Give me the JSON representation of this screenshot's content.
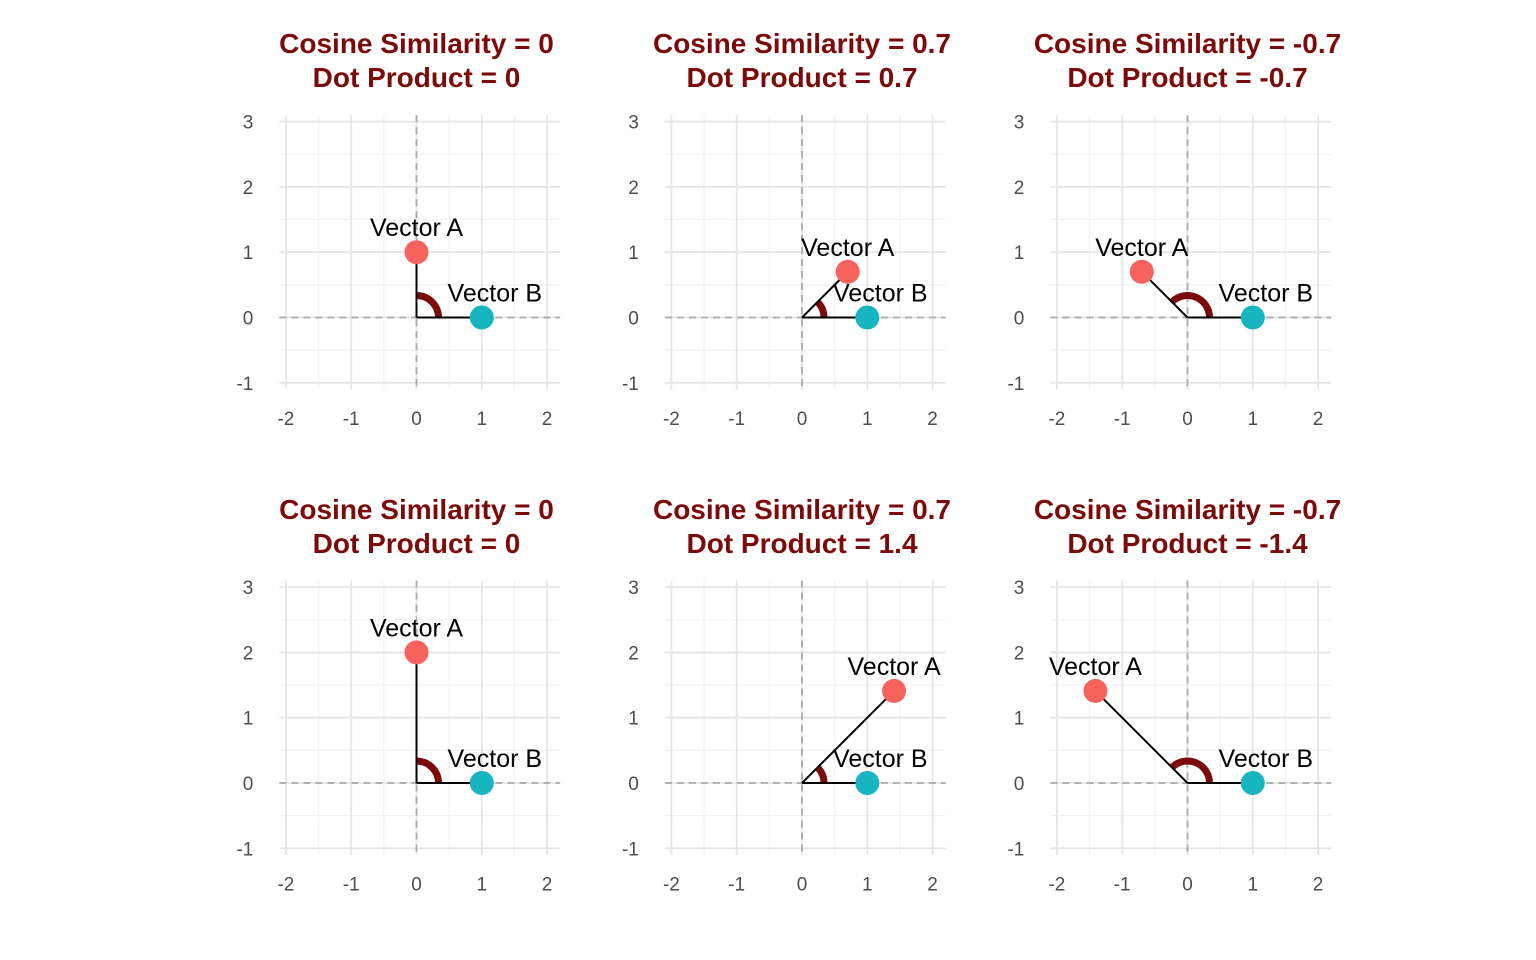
{
  "colors": {
    "title": "#7b0a0a",
    "vector_a": "#f8625d",
    "vector_b": "#17b5bf",
    "angle_arc": "#7b0a0a",
    "grid_major": "#e5e5e5",
    "grid_minor": "#f2f2f2",
    "zero_lines": "#aaaaaa",
    "segments": "#000000"
  },
  "chart_data": [
    {
      "type": "scatter",
      "title": "Cosine Similarity = 0",
      "subtitle": "Dot Product = 0",
      "xlim": [
        -2,
        2
      ],
      "ylim": [
        -1,
        3
      ],
      "x_ticks": [
        "-2",
        "-1",
        "0",
        "1",
        "2"
      ],
      "y_ticks": [
        "3",
        "2",
        "1",
        "0",
        "-1"
      ],
      "grid": true,
      "zero_lines": "dashed",
      "points": [
        {
          "label": "Vector A",
          "x": 0,
          "y": 1,
          "color": "#f8625d"
        },
        {
          "label": "Vector B",
          "x": 1,
          "y": 0,
          "color": "#17b5bf"
        }
      ]
    },
    {
      "type": "scatter",
      "title": "Cosine Similarity = 0.7",
      "subtitle": "Dot Product = 0.7",
      "xlim": [
        -2,
        2
      ],
      "ylim": [
        -1,
        3
      ],
      "x_ticks": [
        "-2",
        "-1",
        "0",
        "1",
        "2"
      ],
      "y_ticks": [
        "3",
        "2",
        "1",
        "0",
        "-1"
      ],
      "grid": true,
      "zero_lines": "dashed",
      "points": [
        {
          "label": "Vector A",
          "x": 0.7,
          "y": 0.7,
          "color": "#f8625d"
        },
        {
          "label": "Vector B",
          "x": 1,
          "y": 0,
          "color": "#17b5bf"
        }
      ]
    },
    {
      "type": "scatter",
      "title": "Cosine Similarity = -0.7",
      "subtitle": "Dot Product = -0.7",
      "xlim": [
        -2,
        2
      ],
      "ylim": [
        -1,
        3
      ],
      "x_ticks": [
        "-2",
        "-1",
        "0",
        "1",
        "2"
      ],
      "y_ticks": [
        "3",
        "2",
        "1",
        "0",
        "-1"
      ],
      "grid": true,
      "zero_lines": "dashed",
      "points": [
        {
          "label": "Vector A",
          "x": -0.7,
          "y": 0.7,
          "color": "#f8625d"
        },
        {
          "label": "Vector B",
          "x": 1,
          "y": 0,
          "color": "#17b5bf"
        }
      ]
    },
    {
      "type": "scatter",
      "title": "Cosine Similarity = 0",
      "subtitle": "Dot Product = 0",
      "xlim": [
        -2,
        2
      ],
      "ylim": [
        -1,
        3
      ],
      "x_ticks": [
        "-2",
        "-1",
        "0",
        "1",
        "2"
      ],
      "y_ticks": [
        "3",
        "2",
        "1",
        "0",
        "-1"
      ],
      "grid": true,
      "zero_lines": "dashed",
      "points": [
        {
          "label": "Vector A",
          "x": 0,
          "y": 2,
          "color": "#f8625d"
        },
        {
          "label": "Vector B",
          "x": 1,
          "y": 0,
          "color": "#17b5bf"
        }
      ]
    },
    {
      "type": "scatter",
      "title": "Cosine Similarity = 0.7",
      "subtitle": "Dot Product = 1.4",
      "xlim": [
        -2,
        2
      ],
      "ylim": [
        -1,
        3
      ],
      "x_ticks": [
        "-2",
        "-1",
        "0",
        "1",
        "2"
      ],
      "y_ticks": [
        "3",
        "2",
        "1",
        "0",
        "-1"
      ],
      "grid": true,
      "zero_lines": "dashed",
      "points": [
        {
          "label": "Vector A",
          "x": 1.41,
          "y": 1.41,
          "color": "#f8625d"
        },
        {
          "label": "Vector B",
          "x": 1,
          "y": 0,
          "color": "#17b5bf"
        }
      ]
    },
    {
      "type": "scatter",
      "title": "Cosine Similarity = -0.7",
      "subtitle": "Dot Product = -1.4",
      "xlim": [
        -2,
        2
      ],
      "ylim": [
        -1,
        3
      ],
      "x_ticks": [
        "-2",
        "-1",
        "0",
        "1",
        "2"
      ],
      "y_ticks": [
        "3",
        "2",
        "1",
        "0",
        "-1"
      ],
      "grid": true,
      "zero_lines": "dashed",
      "points": [
        {
          "label": "Vector A",
          "x": -1.41,
          "y": 1.41,
          "color": "#f8625d"
        },
        {
          "label": "Vector B",
          "x": 1,
          "y": 0,
          "color": "#17b5bf"
        }
      ]
    }
  ]
}
